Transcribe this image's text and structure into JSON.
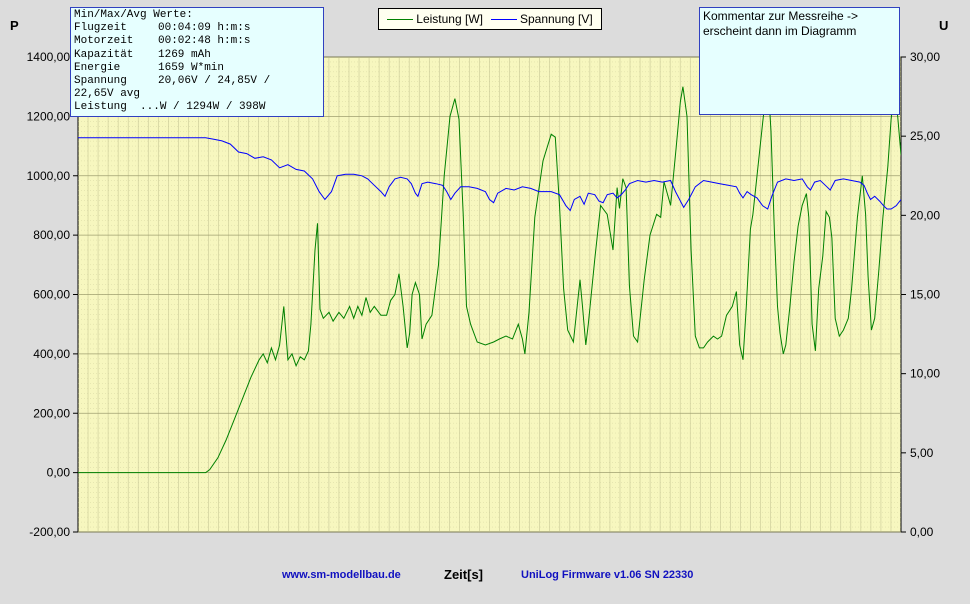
{
  "stats_box": {
    "heading": "Min/Max/Avg Werte:",
    "rows": [
      {
        "key": "Flugzeit",
        "value": "00:04:09 h:m:s"
      },
      {
        "key": "Motorzeit",
        "value": "00:02:48 h:m:s"
      },
      {
        "key": "Kapazität",
        "value": "1269 mAh"
      },
      {
        "key": "Energie",
        "value": "1659 W*min"
      },
      {
        "key": "Spannung",
        "value": "20,06V / 24,85V /"
      }
    ],
    "continuation": "22,65V avg",
    "cut_line": "Leistung  ...W / 1294W / 398W"
  },
  "comment_box": {
    "line1": "Kommentar zur Messreihe ->",
    "line2": "erscheint dann im Diagramm"
  },
  "legend": {
    "leistung": "Leistung [W]",
    "spannung": "Spannung [V]"
  },
  "footer": {
    "website": "www.sm-modellbau.de",
    "xlabel": "Zeit[s]",
    "firmware": "UniLog Firmware v1.06 SN 22330"
  },
  "colors": {
    "plot_background": "#f7f7bf",
    "grid": "#c8c896",
    "leistung": "#008000",
    "spannung": "#0000ff",
    "box_background": "#e6ffff"
  },
  "chart_data": {
    "type": "line",
    "title": "",
    "xlabel": "Zeit[s]",
    "ylabel_left": "P",
    "ylabel_right": "U",
    "ylim_left": [
      -200,
      1400
    ],
    "ylim_right": [
      0,
      30
    ],
    "yticks_left": [
      "-200,00",
      "0,00",
      "200,00",
      "400,00",
      "600,00",
      "800,00",
      "1000,00",
      "1200,00",
      "1400,00"
    ],
    "yticks_right": [
      "0,00",
      "5,00",
      "10,00",
      "15,00",
      "20,00",
      "25,00",
      "30,00"
    ],
    "legend_position": "top-center",
    "grid": true,
    "x_range": [
      0,
      100
    ],
    "series": [
      {
        "name": "Leistung [W]",
        "axis": "left",
        "points": [
          [
            0,
            0
          ],
          [
            15.5,
            0
          ],
          [
            16,
            10
          ],
          [
            17,
            50
          ],
          [
            18,
            110
          ],
          [
            19,
            180
          ],
          [
            20,
            250
          ],
          [
            21,
            320
          ],
          [
            22,
            380
          ],
          [
            22.5,
            400
          ],
          [
            23,
            370
          ],
          [
            23.5,
            420
          ],
          [
            24,
            380
          ],
          [
            24.5,
            430
          ],
          [
            25,
            560
          ],
          [
            25.5,
            380
          ],
          [
            26,
            400
          ],
          [
            26.5,
            360
          ],
          [
            27,
            390
          ],
          [
            27.5,
            380
          ],
          [
            28,
            410
          ],
          [
            28.3,
            500
          ],
          [
            28.8,
            750
          ],
          [
            29.1,
            840
          ],
          [
            29.4,
            550
          ],
          [
            29.8,
            520
          ],
          [
            30.5,
            540
          ],
          [
            31,
            510
          ],
          [
            31.7,
            540
          ],
          [
            32.3,
            520
          ],
          [
            33,
            560
          ],
          [
            33.5,
            520
          ],
          [
            34,
            560
          ],
          [
            34.5,
            530
          ],
          [
            35,
            590
          ],
          [
            35.5,
            540
          ],
          [
            36,
            560
          ],
          [
            36.8,
            530
          ],
          [
            37.5,
            530
          ],
          [
            38,
            580
          ],
          [
            38.5,
            600
          ],
          [
            39,
            670
          ],
          [
            39.5,
            560
          ],
          [
            40,
            420
          ],
          [
            40.3,
            470
          ],
          [
            40.6,
            600
          ],
          [
            41,
            640
          ],
          [
            41.5,
            600
          ],
          [
            41.8,
            450
          ],
          [
            42.3,
            500
          ],
          [
            43,
            530
          ],
          [
            43.8,
            700
          ],
          [
            44.5,
            1000
          ],
          [
            45.2,
            1200
          ],
          [
            45.8,
            1260
          ],
          [
            46.3,
            1190
          ],
          [
            46.8,
            870
          ],
          [
            47.2,
            560
          ],
          [
            47.7,
            500
          ],
          [
            48.5,
            440
          ],
          [
            49.5,
            430
          ],
          [
            50.5,
            440
          ],
          [
            51.2,
            450
          ],
          [
            52,
            460
          ],
          [
            52.8,
            450
          ],
          [
            53.5,
            500
          ],
          [
            54,
            450
          ],
          [
            54.3,
            400
          ],
          [
            54.8,
            540
          ],
          [
            55.5,
            860
          ],
          [
            56.5,
            1050
          ],
          [
            57.5,
            1140
          ],
          [
            58,
            1130
          ],
          [
            58.5,
            900
          ],
          [
            59,
            620
          ],
          [
            59.5,
            480
          ],
          [
            60.2,
            440
          ],
          [
            61,
            650
          ],
          [
            61.3,
            560
          ],
          [
            61.7,
            430
          ],
          [
            62,
            500
          ],
          [
            62.8,
            720
          ],
          [
            63.5,
            900
          ],
          [
            64.3,
            870
          ],
          [
            65,
            750
          ],
          [
            65.5,
            960
          ],
          [
            65.8,
            890
          ],
          [
            66.2,
            990
          ],
          [
            66.6,
            960
          ],
          [
            67,
            630
          ],
          [
            67.5,
            460
          ],
          [
            68,
            440
          ],
          [
            68.8,
            650
          ],
          [
            69.5,
            800
          ],
          [
            70.3,
            870
          ],
          [
            70.8,
            860
          ],
          [
            71.2,
            980
          ],
          [
            71.6,
            940
          ],
          [
            72,
            900
          ],
          [
            72.7,
            1100
          ],
          [
            73.2,
            1250
          ],
          [
            73.5,
            1300
          ],
          [
            74,
            1200
          ],
          [
            74.5,
            750
          ],
          [
            75,
            460
          ],
          [
            75.5,
            420
          ],
          [
            76,
            420
          ],
          [
            76.5,
            440
          ],
          [
            77.2,
            460
          ],
          [
            77.7,
            450
          ],
          [
            78.2,
            460
          ],
          [
            78.8,
            530
          ],
          [
            79.5,
            560
          ],
          [
            80,
            610
          ],
          [
            80.4,
            430
          ],
          [
            80.8,
            380
          ],
          [
            81.2,
            560
          ],
          [
            81.7,
            820
          ],
          [
            82,
            870
          ],
          [
            82.5,
            1000
          ],
          [
            83.2,
            1180
          ],
          [
            83.8,
            1330
          ],
          [
            84.2,
            1150
          ],
          [
            84.6,
            820
          ],
          [
            85,
            560
          ],
          [
            85.3,
            470
          ],
          [
            85.7,
            400
          ],
          [
            86,
            430
          ],
          [
            86.5,
            560
          ],
          [
            87,
            710
          ],
          [
            87.5,
            830
          ],
          [
            88,
            900
          ],
          [
            88.5,
            940
          ],
          [
            88.8,
            860
          ],
          [
            89.2,
            500
          ],
          [
            89.6,
            410
          ],
          [
            90,
            620
          ],
          [
            90.5,
            730
          ],
          [
            90.9,
            880
          ],
          [
            91.3,
            860
          ],
          [
            91.6,
            790
          ],
          [
            92,
            520
          ],
          [
            92.5,
            460
          ],
          [
            93,
            480
          ],
          [
            93.6,
            520
          ],
          [
            94,
            620
          ],
          [
            94.7,
            860
          ],
          [
            95.3,
            1000
          ],
          [
            95.7,
            870
          ],
          [
            96,
            660
          ],
          [
            96.4,
            480
          ],
          [
            96.8,
            520
          ],
          [
            97.3,
            680
          ],
          [
            97.8,
            860
          ],
          [
            98.4,
            1030
          ],
          [
            98.8,
            1190
          ],
          [
            99.2,
            1280
          ],
          [
            99.6,
            1200
          ],
          [
            100,
            1070
          ]
        ]
      },
      {
        "name": "Spannung [V]",
        "axis": "right",
        "points": [
          [
            0,
            24.9
          ],
          [
            15.5,
            24.9
          ],
          [
            16.5,
            24.8
          ],
          [
            17.5,
            24.7
          ],
          [
            18.5,
            24.5
          ],
          [
            19.5,
            24.0
          ],
          [
            20.5,
            23.9
          ],
          [
            21.5,
            23.6
          ],
          [
            22.5,
            23.7
          ],
          [
            23.5,
            23.5
          ],
          [
            24.5,
            23.0
          ],
          [
            25.5,
            23.2
          ],
          [
            26.5,
            22.9
          ],
          [
            27.5,
            22.8
          ],
          [
            28.5,
            22.3
          ],
          [
            29.3,
            21.5
          ],
          [
            30,
            21.0
          ],
          [
            30.8,
            21.5
          ],
          [
            31.5,
            22.5
          ],
          [
            32.5,
            22.6
          ],
          [
            33.5,
            22.6
          ],
          [
            34.5,
            22.5
          ],
          [
            35.2,
            22.3
          ],
          [
            36,
            21.9
          ],
          [
            36.8,
            21.5
          ],
          [
            37.3,
            21.2
          ],
          [
            37.8,
            21.8
          ],
          [
            38.5,
            22.3
          ],
          [
            39.2,
            22.4
          ],
          [
            40,
            22.3
          ],
          [
            40.5,
            22.0
          ],
          [
            41,
            21.4
          ],
          [
            41.3,
            21.2
          ],
          [
            41.8,
            22.0
          ],
          [
            42.5,
            22.1
          ],
          [
            43.5,
            22.0
          ],
          [
            44.3,
            21.9
          ],
          [
            44.8,
            21.5
          ],
          [
            45.3,
            21.0
          ],
          [
            45.8,
            21.4
          ],
          [
            46.5,
            21.8
          ],
          [
            47.5,
            21.8
          ],
          [
            48.5,
            21.7
          ],
          [
            49.5,
            21.5
          ],
          [
            50,
            21.0
          ],
          [
            50.5,
            20.8
          ],
          [
            51,
            21.4
          ],
          [
            52,
            21.7
          ],
          [
            53,
            21.6
          ],
          [
            54,
            21.8
          ],
          [
            55,
            21.7
          ],
          [
            56,
            21.5
          ],
          [
            57.5,
            21.5
          ],
          [
            58.5,
            21.3
          ],
          [
            59.3,
            20.6
          ],
          [
            59.8,
            20.3
          ],
          [
            60.3,
            21.0
          ],
          [
            61,
            21.2
          ],
          [
            61.5,
            20.7
          ],
          [
            62,
            21.4
          ],
          [
            62.8,
            21.3
          ],
          [
            63.3,
            20.9
          ],
          [
            63.8,
            20.8
          ],
          [
            64.3,
            21.3
          ],
          [
            65,
            21.4
          ],
          [
            65.5,
            21.1
          ],
          [
            66,
            21.3
          ],
          [
            66.5,
            21.6
          ],
          [
            67,
            22.0
          ],
          [
            68,
            22.2
          ],
          [
            69,
            22.1
          ],
          [
            70,
            22.2
          ],
          [
            71,
            22.1
          ],
          [
            72,
            22.2
          ],
          [
            72.6,
            21.5
          ],
          [
            73.1,
            21.0
          ],
          [
            73.6,
            20.5
          ],
          [
            74.2,
            21.0
          ],
          [
            75,
            21.8
          ],
          [
            76,
            22.2
          ],
          [
            77,
            22.1
          ],
          [
            78,
            22.0
          ],
          [
            79,
            21.9
          ],
          [
            80,
            21.8
          ],
          [
            80.4,
            21.4
          ],
          [
            80.8,
            21.1
          ],
          [
            81.3,
            21.5
          ],
          [
            81.8,
            21.3
          ],
          [
            82.5,
            21.1
          ],
          [
            83.2,
            20.6
          ],
          [
            83.8,
            20.4
          ],
          [
            84.3,
            21.2
          ],
          [
            85,
            22.1
          ],
          [
            86,
            22.3
          ],
          [
            87,
            22.2
          ],
          [
            88,
            22.3
          ],
          [
            88.6,
            21.8
          ],
          [
            89,
            21.6
          ],
          [
            89.5,
            22.1
          ],
          [
            90.2,
            22.2
          ],
          [
            91,
            21.8
          ],
          [
            91.4,
            21.6
          ],
          [
            92,
            22.2
          ],
          [
            93,
            22.3
          ],
          [
            94,
            22.2
          ],
          [
            95,
            22.1
          ],
          [
            95.5,
            21.9
          ],
          [
            95.9,
            21.4
          ],
          [
            96.3,
            21.0
          ],
          [
            96.8,
            21.2
          ],
          [
            97.4,
            20.9
          ],
          [
            97.9,
            20.6
          ],
          [
            98.3,
            20.4
          ],
          [
            98.8,
            20.4
          ],
          [
            99.4,
            20.6
          ],
          [
            100,
            21.0
          ]
        ]
      }
    ]
  }
}
